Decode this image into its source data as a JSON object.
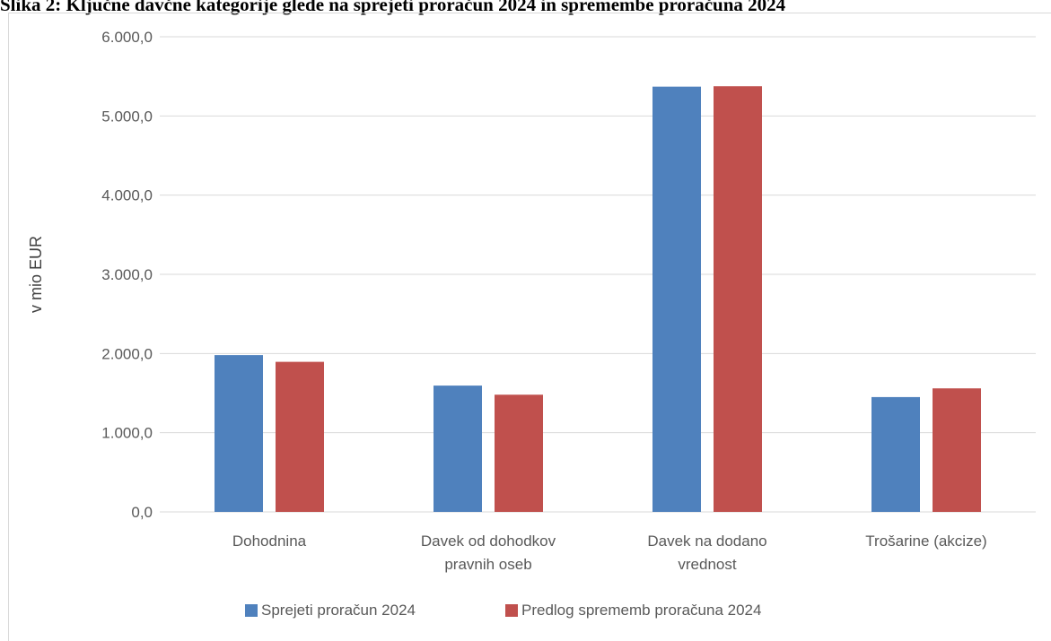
{
  "caption": "Slika 2: Ključne davčne kategorije glede na sprejeti proračun 2024 in spremembe proračuna 2024",
  "chart_data": {
    "type": "bar",
    "title": "",
    "ylabel": "v mio EUR",
    "xlabel": "",
    "ylim": [
      0,
      6000
    ],
    "yticks": [
      0,
      1000,
      2000,
      3000,
      4000,
      5000,
      6000
    ],
    "ytick_labels": [
      "0,0",
      "1.000,0",
      "2.000,0",
      "3.000,0",
      "4.000,0",
      "5.000,0",
      "6.000,0"
    ],
    "grid": true,
    "legend_position": "bottom",
    "categories": [
      [
        "Dohodnina"
      ],
      [
        "Davek od dohodkov",
        "pravnih oseb"
      ],
      [
        "Davek na dodano",
        "vrednost"
      ],
      [
        "Trošarine (akcize)"
      ]
    ],
    "series": [
      {
        "name": "Sprejeti proračun 2024",
        "color": "#4f81bd",
        "values": [
          1980,
          1595,
          5370,
          1450
        ]
      },
      {
        "name": "Predlog sprememb proračuna 2024",
        "color": "#c0504d",
        "values": [
          1895,
          1480,
          5375,
          1560
        ]
      }
    ],
    "gridline_color": "#d9d9d9",
    "axis_color": "#d9d9d9"
  }
}
